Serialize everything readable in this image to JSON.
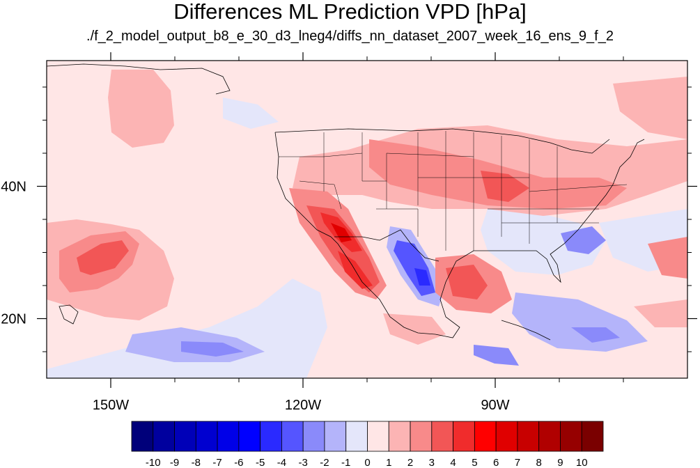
{
  "title": "Differences ML Prediction VPD [hPa]",
  "subtitle": "./f_2_model_output_b8_e_30_d3_lneg4/diffs_nn_dataset_2007_week_16_ens_9_f_2",
  "map": {
    "lon_range": [
      -160,
      -60
    ],
    "lat_range": [
      11,
      59
    ],
    "lon_ticks": [
      {
        "lon": -150,
        "label": "150W"
      },
      {
        "lon": -120,
        "label": "120W"
      },
      {
        "lon": -90,
        "label": "90W"
      }
    ],
    "lat_ticks": [
      {
        "lat": 40,
        "label": "40N"
      },
      {
        "lat": 20,
        "label": "20N"
      }
    ]
  },
  "colorbar": {
    "labels": [
      "-10",
      "-9",
      "-8",
      "-7",
      "-6",
      "-5",
      "-4",
      "-3",
      "-2",
      "-1",
      "0",
      "1",
      "2",
      "3",
      "4",
      "5",
      "6",
      "7",
      "8",
      "9",
      "10"
    ],
    "colors": [
      "#00007a",
      "#00009e",
      "#0000b8",
      "#0000d0",
      "#0000e8",
      "#0000ff",
      "#2a2aff",
      "#5555ff",
      "#8a8afa",
      "#b4b4fa",
      "#e4e6fa",
      "#ffe6e6",
      "#fcb4b4",
      "#f88a8a",
      "#f25656",
      "#f02c2c",
      "#ff0000",
      "#e00000",
      "#c80000",
      "#b00000",
      "#960000",
      "#7a0000"
    ]
  }
}
